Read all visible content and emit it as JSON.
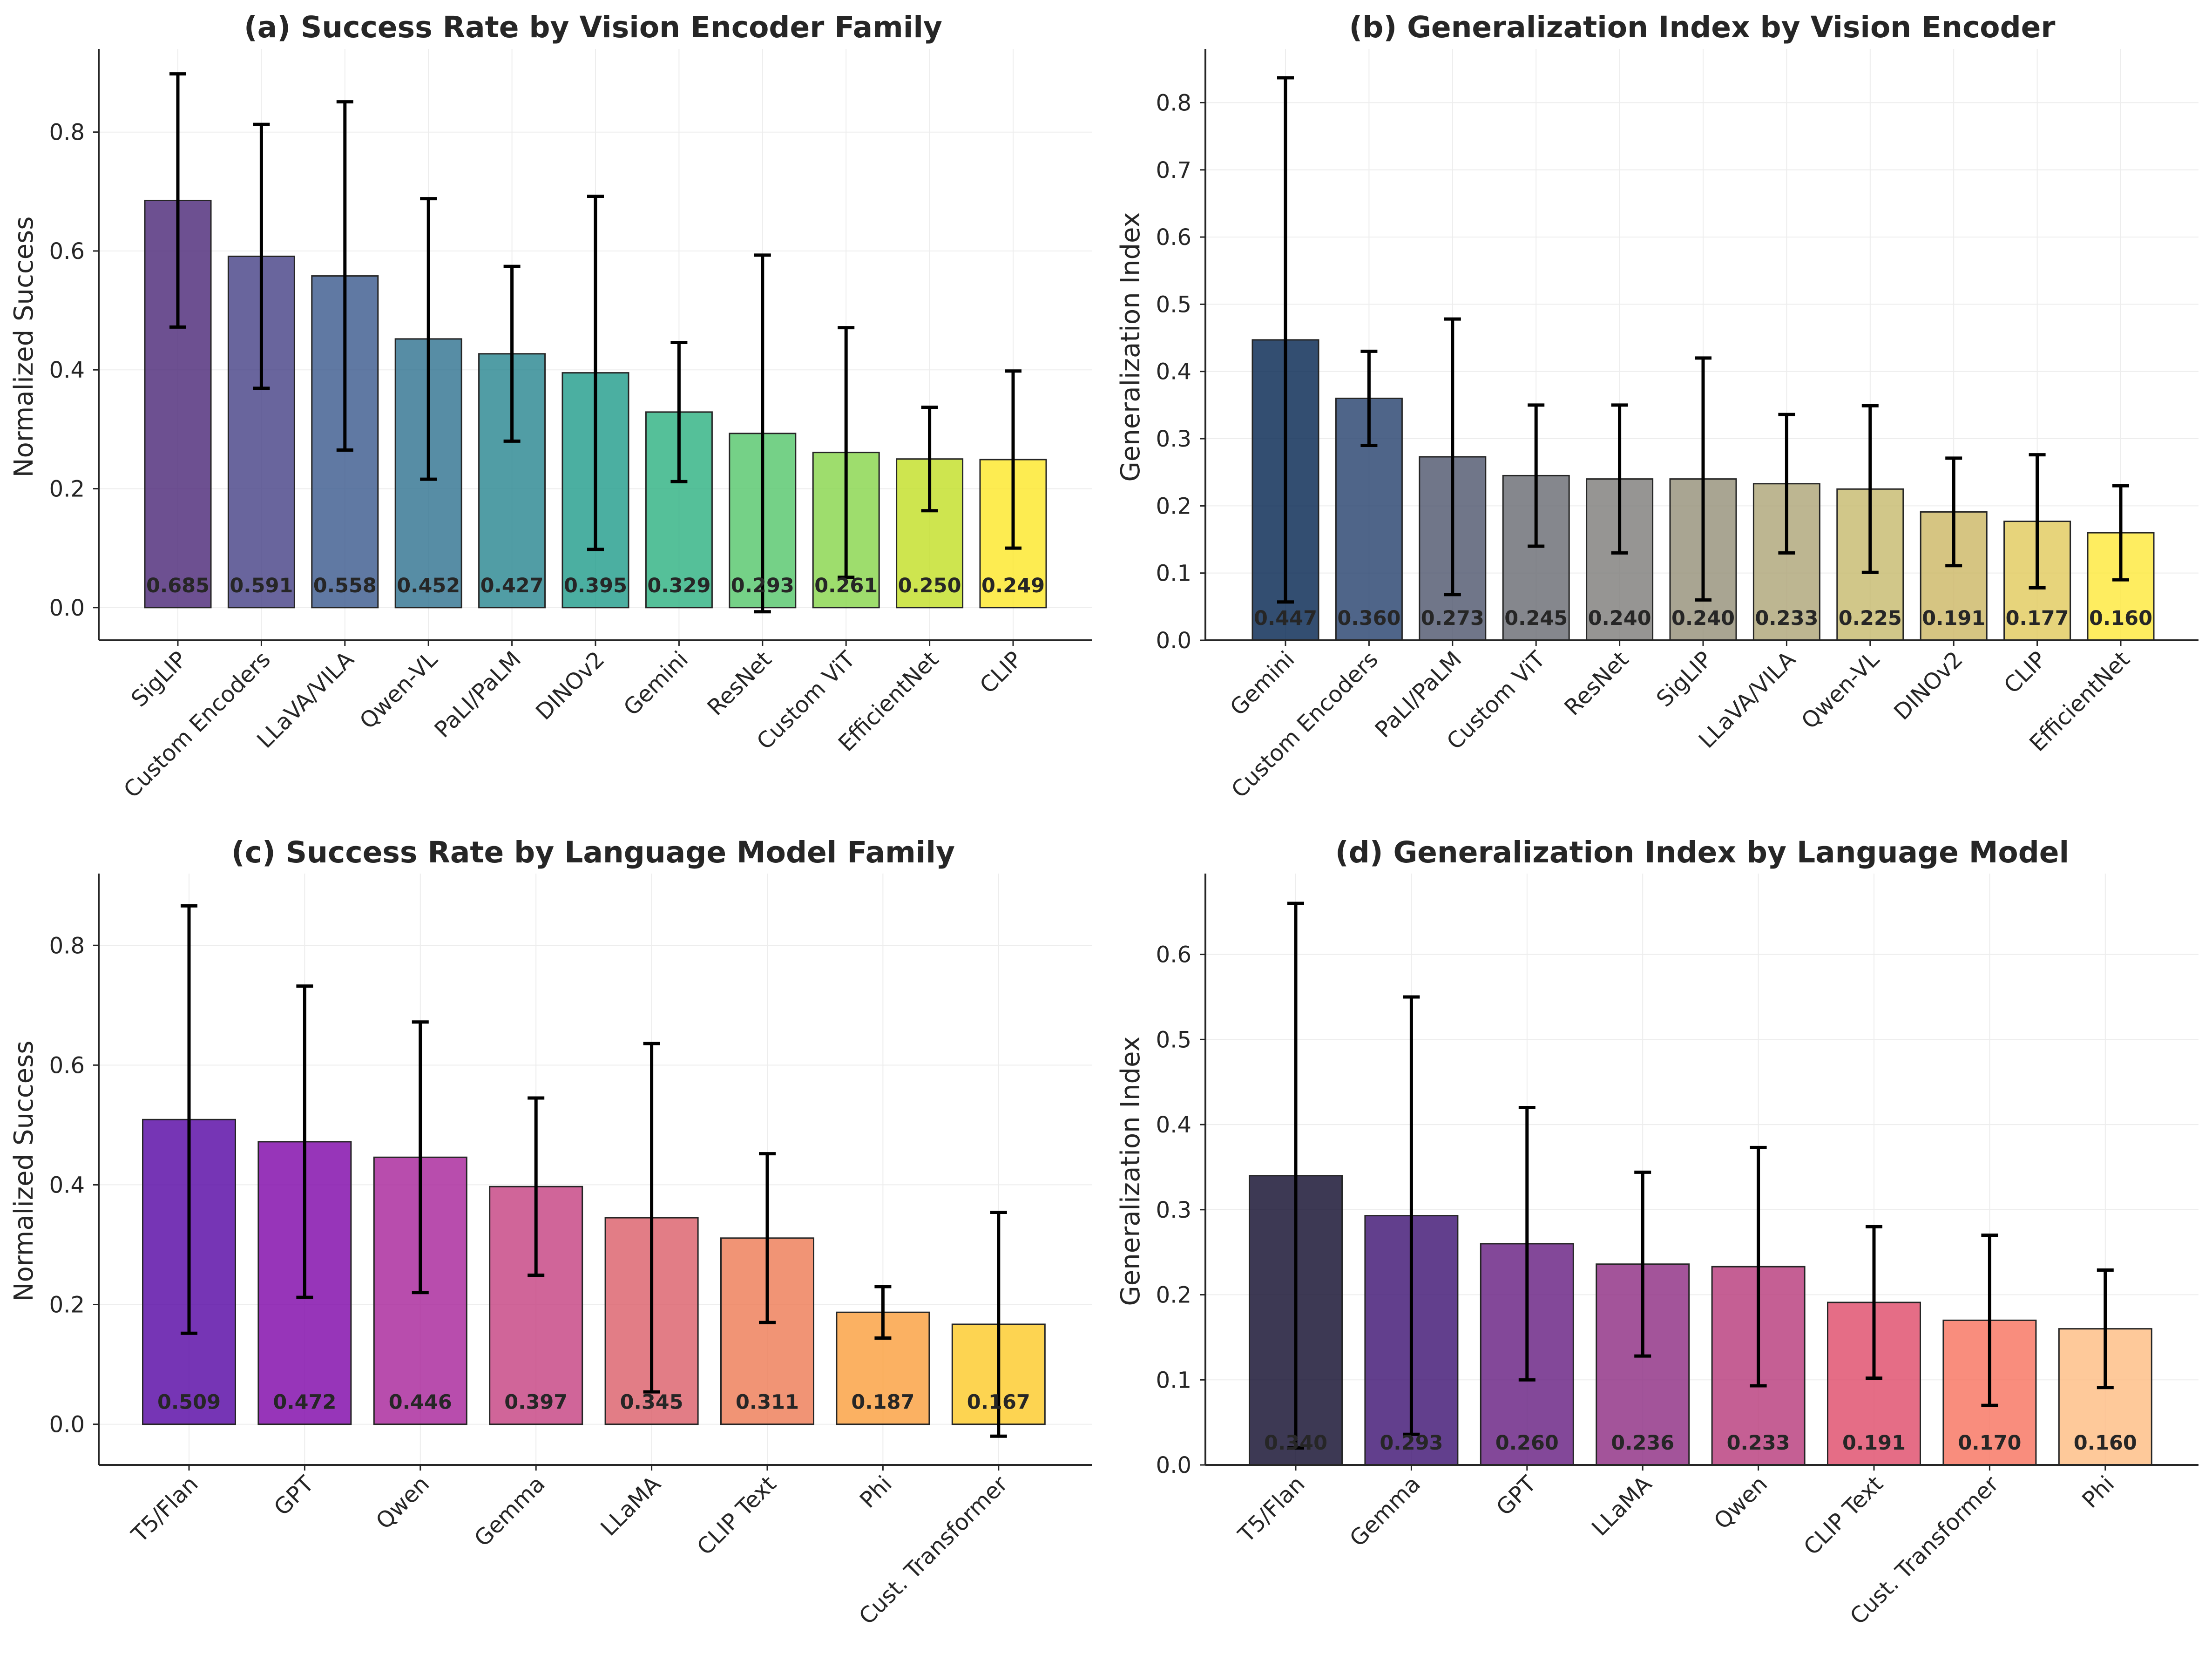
{
  "chart_data": [
    {
      "type": "bar",
      "title": "(a) Success Rate by Vision Encoder Family",
      "xlabel": "",
      "ylabel": "Normalized Success",
      "ylim": [
        -0.055,
        0.94
      ],
      "yticks": [
        0.0,
        0.2,
        0.4,
        0.6,
        0.8
      ],
      "ytick_labels": [
        "0.0",
        "0.2",
        "0.4",
        "0.6",
        "0.8"
      ],
      "categories": [
        "SigLIP",
        "Custom Encoders",
        "LLaVA/VILA",
        "Qwen-VL",
        "PaLI/PaLM",
        "DINOv2",
        "Gemini",
        "ResNet",
        "Custom ViT",
        "EfficientNet",
        "CLIP"
      ],
      "values": [
        0.685,
        0.591,
        0.558,
        0.452,
        0.427,
        0.395,
        0.329,
        0.293,
        0.261,
        0.25,
        0.249
      ],
      "value_labels": [
        "0.685",
        "0.591",
        "0.558",
        "0.452",
        "0.427",
        "0.395",
        "0.329",
        "0.293",
        "0.261",
        "0.250",
        "0.249"
      ],
      "errors": [
        0.213,
        0.222,
        0.293,
        0.236,
        0.147,
        0.297,
        0.117,
        0.3,
        0.21,
        0.087,
        0.149
      ],
      "colors": [
        "#482475",
        "#433e85",
        "#38588c",
        "#2d708e",
        "#25858e",
        "#1e9b8a",
        "#2ab07f",
        "#52c569",
        "#86d549",
        "#c2df23",
        "#fde725"
      ],
      "grid": true
    },
    {
      "type": "bar",
      "title": "(b) Generalization Index by Vision Encoder",
      "xlabel": "",
      "ylabel": "Generalization Index",
      "ylim": [
        0.0,
        0.88
      ],
      "yticks": [
        0.0,
        0.1,
        0.2,
        0.3,
        0.4,
        0.5,
        0.6,
        0.7,
        0.8
      ],
      "ytick_labels": [
        "0.0",
        "0.1",
        "0.2",
        "0.3",
        "0.4",
        "0.5",
        "0.6",
        "0.7",
        "0.8"
      ],
      "categories": [
        "Gemini",
        "Custom Encoders",
        "PaLI/PaLM",
        "Custom ViT",
        "ResNet",
        "SigLIP",
        "LLaVA/VILA",
        "Qwen-VL",
        "DINOv2",
        "CLIP",
        "EfficientNet"
      ],
      "values": [
        0.447,
        0.36,
        0.273,
        0.245,
        0.24,
        0.24,
        0.233,
        0.225,
        0.191,
        0.177,
        0.16
      ],
      "value_labels": [
        "0.447",
        "0.360",
        "0.273",
        "0.245",
        "0.240",
        "0.240",
        "0.233",
        "0.225",
        "0.191",
        "0.177",
        "0.160"
      ],
      "errors": [
        0.39,
        0.07,
        0.205,
        0.105,
        0.11,
        0.18,
        0.103,
        0.124,
        0.08,
        0.099,
        0.07
      ],
      "colors": [
        "#00224e",
        "#233e6c",
        "#4c546c",
        "#666970",
        "#7c7b78",
        "#948e77",
        "#aca475",
        "#c6b96b",
        "#ccb663",
        "#e1c95a",
        "#fee838"
      ],
      "grid": true
    },
    {
      "type": "bar",
      "title": "(c) Success Rate by Language Model Family",
      "xlabel": "",
      "ylabel": "Normalized Success",
      "ylim": [
        -0.068,
        0.92
      ],
      "yticks": [
        0.0,
        0.2,
        0.4,
        0.6,
        0.8
      ],
      "ytick_labels": [
        "0.0",
        "0.2",
        "0.4",
        "0.6",
        "0.8"
      ],
      "categories": [
        "T5/Flan",
        "GPT",
        "Qwen",
        "Gemma",
        "LLaMA",
        "CLIP Text",
        "Phi",
        "Cust. Transformer"
      ],
      "values": [
        0.509,
        0.472,
        0.446,
        0.397,
        0.345,
        0.311,
        0.187,
        0.167
      ],
      "value_labels": [
        "0.509",
        "0.472",
        "0.446",
        "0.397",
        "0.345",
        "0.311",
        "0.187",
        "0.167"
      ],
      "errors": [
        0.357,
        0.26,
        0.226,
        0.148,
        0.291,
        0.141,
        0.043,
        0.187
      ],
      "colors": [
        "#5402a3",
        "#7d03a8",
        "#a62098",
        "#c43e7f",
        "#db5c68",
        "#ed7953",
        "#fa9e3b",
        "#fdc926"
      ],
      "grid": true
    },
    {
      "type": "bar",
      "title": "(d) Generalization Index by Language Model",
      "xlabel": "",
      "ylabel": "Generalization Index",
      "ylim": [
        0.0,
        0.695
      ],
      "yticks": [
        0.0,
        0.1,
        0.2,
        0.3,
        0.4,
        0.5,
        0.6
      ],
      "ytick_labels": [
        "0.0",
        "0.1",
        "0.2",
        "0.3",
        "0.4",
        "0.5",
        "0.6"
      ],
      "categories": [
        "T5/Flan",
        "Gemma",
        "GPT",
        "LLaMA",
        "Qwen",
        "CLIP Text",
        "Cust. Transformer",
        "Phi"
      ],
      "values": [
        0.34,
        0.293,
        0.26,
        0.236,
        0.233,
        0.191,
        0.17,
        0.16
      ],
      "value_labels": [
        "0.340",
        "0.293",
        "0.260",
        "0.236",
        "0.233",
        "0.191",
        "0.170",
        "0.160"
      ],
      "errors": [
        0.32,
        0.257,
        0.16,
        0.108,
        0.14,
        0.089,
        0.1,
        0.069
      ],
      "colors": [
        "#0d0829",
        "#3b0f70",
        "#641a80",
        "#8c2981",
        "#b73779",
        "#de4968",
        "#f7705c",
        "#febb81"
      ],
      "grid": true
    }
  ]
}
